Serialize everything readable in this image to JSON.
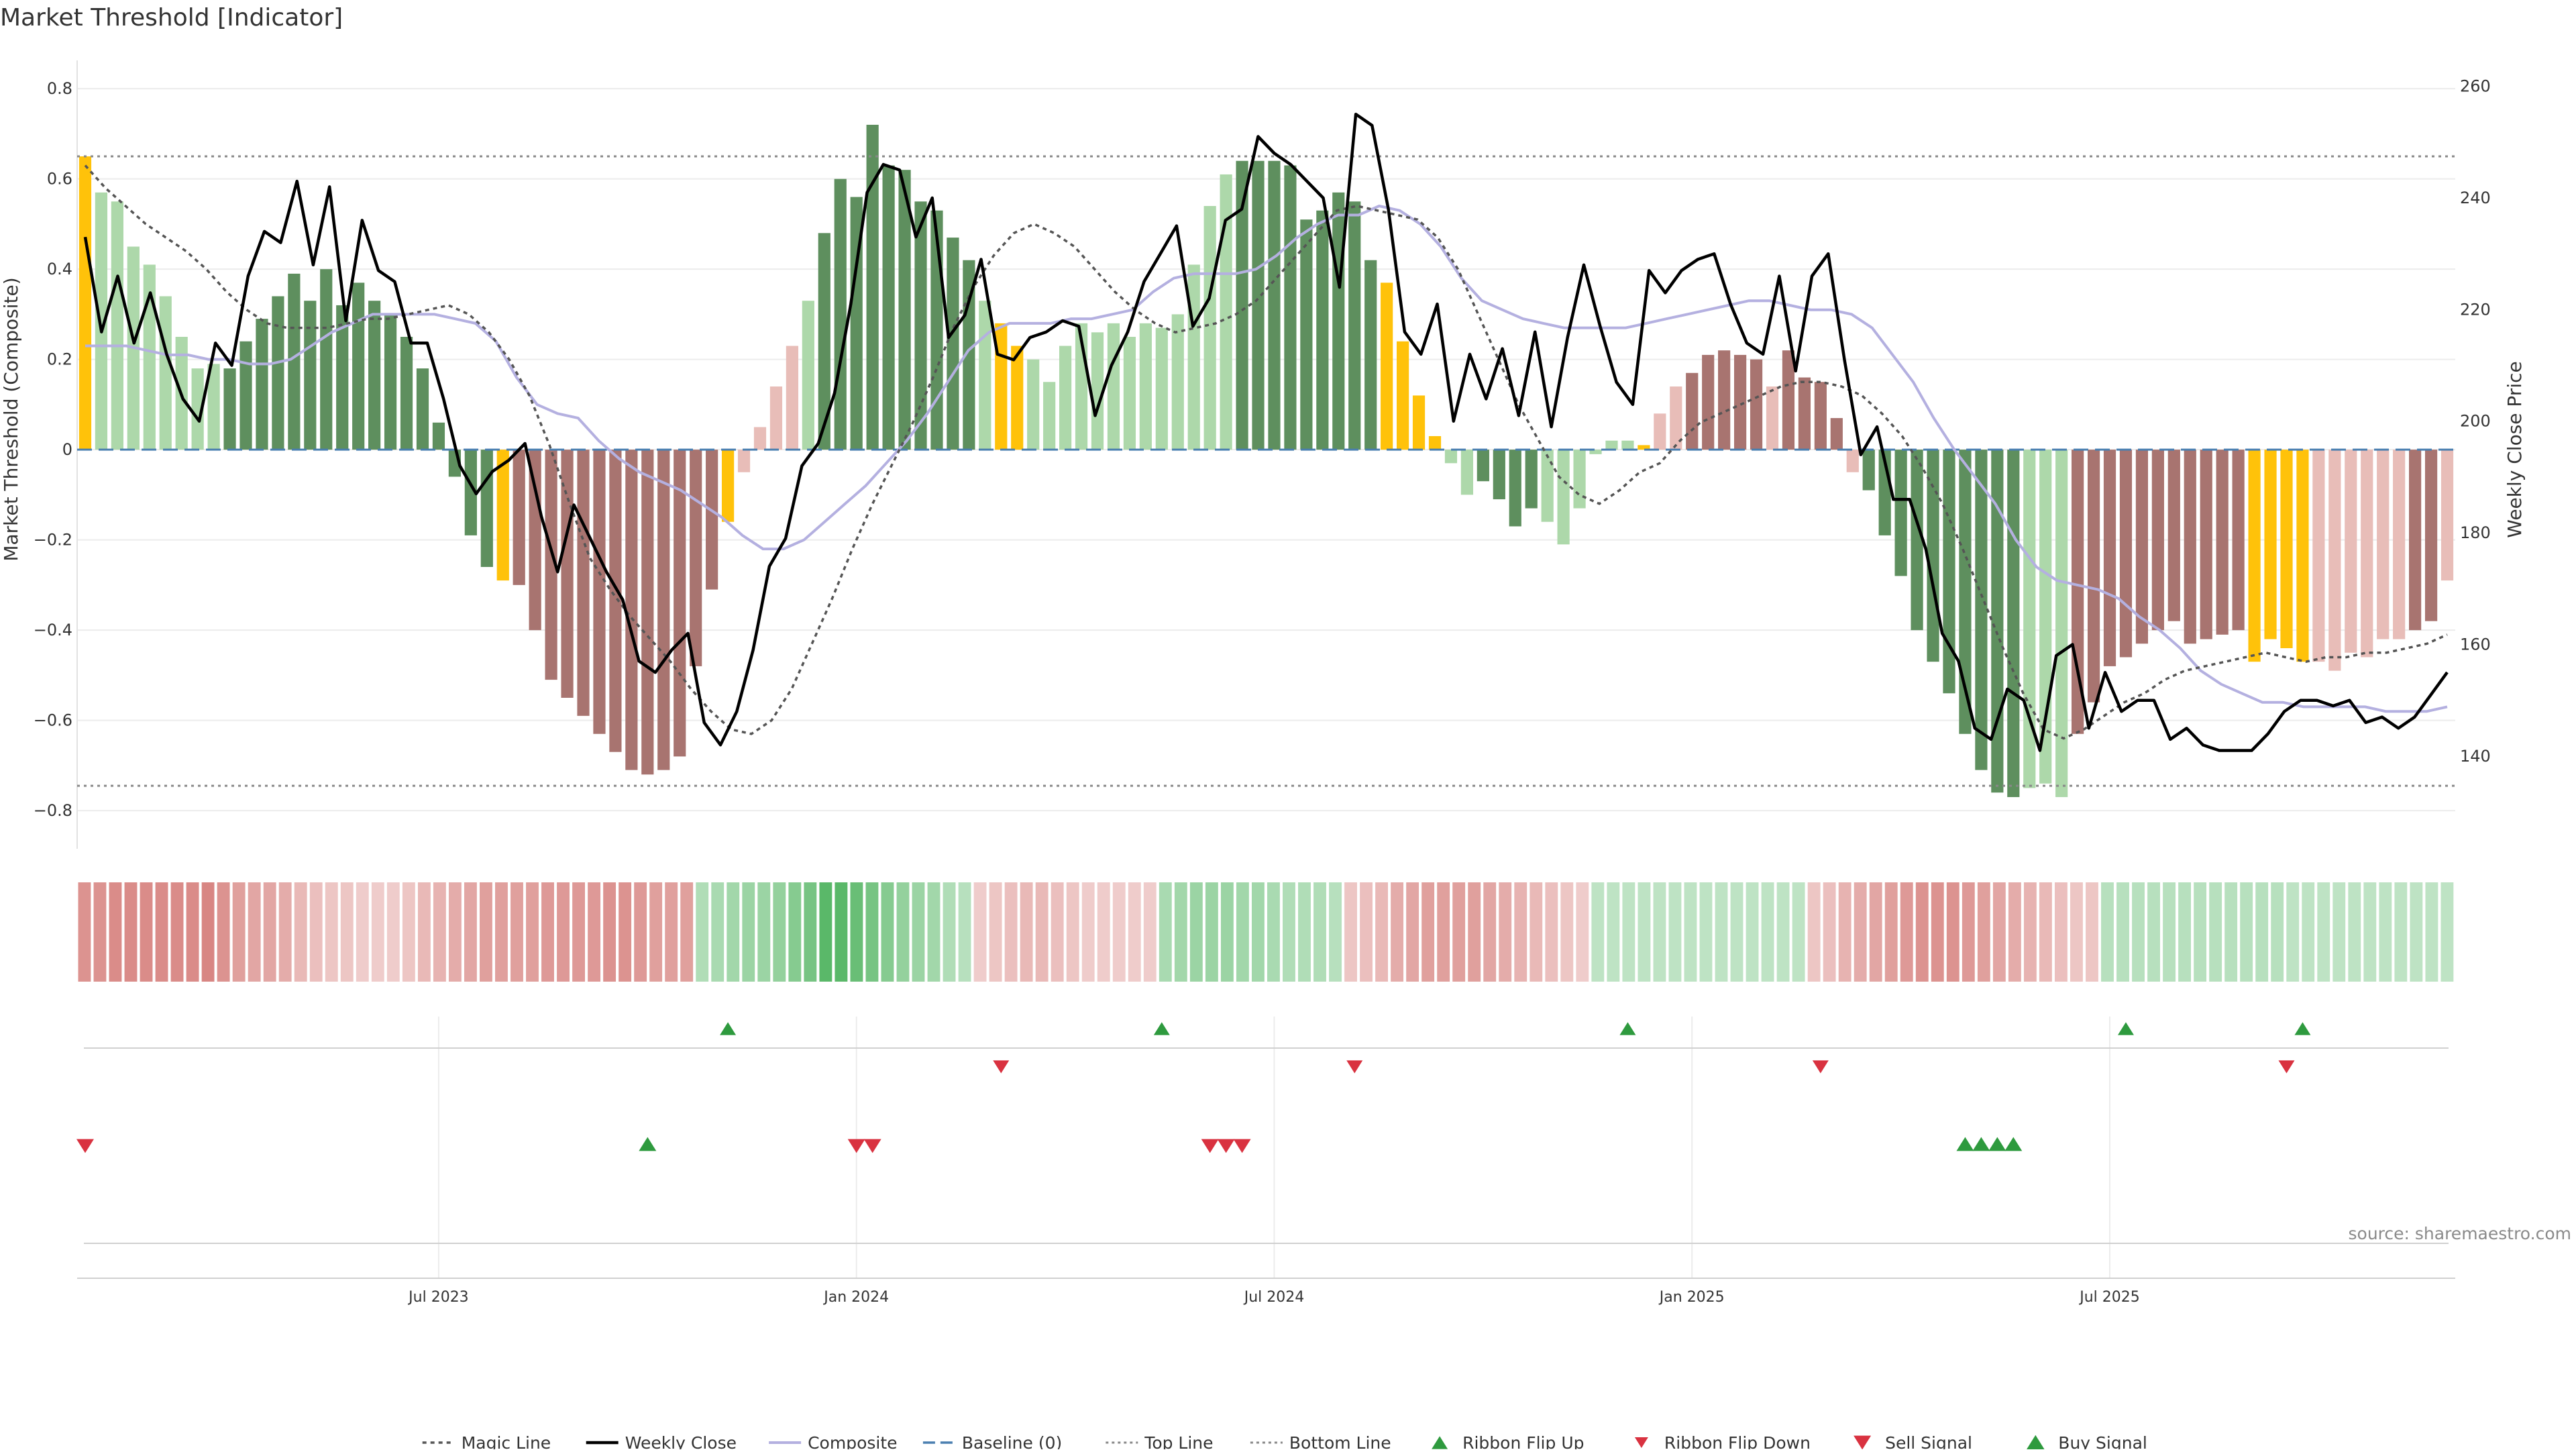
{
  "title": "Market Threshold [Indicator]",
  "source": "source: sharemaestro.com",
  "colors": {
    "pos_strong": "#5e8f5e",
    "pos_weak": "#add8aa",
    "neg_strong": "#a87470",
    "neg_weak": "#e8bdb8",
    "extreme": "#ffc20a",
    "close": "#000000",
    "composite": "#b4b0e0",
    "magic": "#555555",
    "baseline": "#4a7fb0",
    "threshold": "#888888",
    "up_marker": "#2e9a3e",
    "down_marker": "#d93240"
  },
  "chart_data": {
    "type": "bar",
    "title": "Market Threshold [Indicator]",
    "xlabel": "",
    "ylabel": "Market Threshold (Composite)",
    "y2label": "Weekly Close Price",
    "ylim": [
      -0.84,
      0.83
    ],
    "y2lim": [
      127,
      262
    ],
    "yticks": [
      "0.8",
      "0.6",
      "0.4",
      "0.2",
      "0",
      "−0.2",
      "−0.4",
      "−0.6",
      "−0.8"
    ],
    "y2ticks": [
      "260",
      "240",
      "220",
      "200",
      "180",
      "160",
      "140"
    ],
    "xticks": [
      {
        "label": "Jul 2023",
        "week": 22
      },
      {
        "label": "Jan 2024",
        "week": 48
      },
      {
        "label": "Jul 2024",
        "week": 74
      },
      {
        "label": "Jan 2025",
        "week": 100
      },
      {
        "label": "Jul 2025",
        "week": 126
      }
    ],
    "top_line": 0.65,
    "bottom_line": -0.745,
    "baseline": 0,
    "bar_codes": "XAAAAAAAASWSSSSSWSSSSSWWWWXNNNNNNNNNNNNNYZZZZAWWSSSSSSSSAXXAAAAAAAAAAAAASSSSSSSSSXXXXAASSSSAAAAAAXZZNNNNNZNNNNZSSSSSSSSSSAAANNNNNNNNNNNYYYYZZZZZZNNZZZZNZZNZZZ",
    "composite_bars": [
      0.65,
      0.57,
      0.55,
      0.45,
      0.41,
      0.34,
      0.25,
      0.18,
      0.19,
      0.18,
      0.24,
      0.29,
      0.34,
      0.39,
      0.33,
      0.4,
      0.32,
      0.37,
      0.33,
      0.3,
      0.25,
      0.18,
      0.06,
      -0.06,
      -0.19,
      -0.26,
      -0.29,
      -0.3,
      -0.4,
      -0.51,
      -0.55,
      -0.59,
      -0.63,
      -0.67,
      -0.71,
      -0.72,
      -0.71,
      -0.68,
      -0.48,
      -0.31,
      -0.16,
      -0.05,
      0.05,
      0.14,
      0.23,
      0.33,
      0.48,
      0.6,
      0.56,
      0.72,
      0.63,
      0.62,
      0.55,
      0.53,
      0.47,
      0.42,
      0.33,
      0.28,
      0.23,
      0.2,
      0.15,
      0.23,
      0.28,
      0.26,
      0.28,
      0.25,
      0.28,
      0.27,
      0.3,
      0.41,
      0.54,
      0.61,
      0.64,
      0.64,
      0.64,
      0.63,
      0.51,
      0.53,
      0.57,
      0.55,
      0.42,
      0.37,
      0.24,
      0.12,
      0.03,
      -0.03,
      -0.1,
      -0.07,
      -0.11,
      -0.17,
      -0.13,
      -0.16,
      -0.21,
      -0.13,
      -0.01,
      0.02,
      0.02,
      0.01,
      0.08,
      0.14,
      0.17,
      0.21,
      0.22,
      0.21,
      0.2,
      0.14,
      0.22,
      0.16,
      0.15,
      0.07,
      -0.05,
      -0.09,
      -0.19,
      -0.28,
      -0.4,
      -0.47,
      -0.54,
      -0.63,
      -0.71,
      -0.76,
      -0.77,
      -0.75,
      -0.74,
      -0.77,
      -0.63,
      -0.56,
      -0.48,
      -0.46,
      -0.43,
      -0.4,
      -0.38,
      -0.43,
      -0.42,
      -0.41,
      -0.4,
      -0.47,
      -0.42,
      -0.44,
      -0.47,
      -0.47,
      -0.49,
      -0.45,
      -0.46,
      -0.42,
      -0.42,
      -0.4,
      -0.38,
      -0.29
    ],
    "weekly_close": [
      233,
      216,
      226,
      214,
      223,
      212,
      204,
      200,
      214,
      210,
      226,
      234,
      232,
      243,
      228,
      242,
      218,
      236,
      227,
      225,
      214,
      214,
      204,
      192,
      187,
      191,
      193,
      196,
      183,
      173,
      185,
      179,
      173,
      168,
      157,
      155,
      159,
      162,
      146,
      142,
      148,
      159,
      174,
      179,
      192,
      196,
      205,
      221,
      241,
      246,
      245,
      233,
      240,
      215,
      219,
      229,
      212,
      211,
      215,
      216,
      218,
      217,
      201,
      210,
      216,
      225,
      230,
      235,
      217,
      222,
      236,
      238,
      251,
      248,
      246,
      243,
      240,
      224,
      255,
      253,
      238,
      216,
      212,
      221,
      200,
      212,
      204,
      213,
      201,
      216,
      199,
      215,
      228,
      217,
      207,
      203,
      227,
      223,
      227,
      229,
      230,
      221,
      214,
      212,
      226,
      209,
      226,
      230,
      211,
      194,
      199,
      186,
      186,
      177,
      162,
      157,
      145,
      143,
      152,
      150,
      141,
      158,
      160,
      145,
      155,
      148,
      150,
      150,
      143,
      145,
      142,
      141,
      141,
      141,
      144,
      148,
      150,
      150,
      149,
      150,
      146,
      147,
      145,
      147,
      151,
      155
    ],
    "magic_line": [
      0.63,
      0.58,
      0.54,
      0.5,
      0.47,
      0.44,
      0.4,
      0.35,
      0.31,
      0.28,
      0.27,
      0.27,
      0.27,
      0.28,
      0.29,
      0.29,
      0.3,
      0.31,
      0.32,
      0.3,
      0.26,
      0.2,
      0.12,
      0.01,
      -0.12,
      -0.24,
      -0.31,
      -0.37,
      -0.42,
      -0.47,
      -0.53,
      -0.58,
      -0.62,
      -0.63,
      -0.6,
      -0.53,
      -0.43,
      -0.33,
      -0.22,
      -0.12,
      -0.03,
      0.06,
      0.16,
      0.27,
      0.36,
      0.43,
      0.48,
      0.5,
      0.48,
      0.45,
      0.4,
      0.35,
      0.31,
      0.28,
      0.26,
      0.27,
      0.28,
      0.3,
      0.33,
      0.38,
      0.43,
      0.48,
      0.53,
      0.54,
      0.53,
      0.52,
      0.51,
      0.47,
      0.4,
      0.3,
      0.2,
      0.1,
      0.02,
      -0.06,
      -0.1,
      -0.12,
      -0.09,
      -0.05,
      -0.03,
      0.02,
      0.06,
      0.08,
      0.1,
      0.12,
      0.14,
      0.15,
      0.15,
      0.14,
      0.12,
      0.08,
      0.03,
      -0.04,
      -0.12,
      -0.22,
      -0.33,
      -0.44,
      -0.54,
      -0.62,
      -0.64,
      -0.62,
      -0.59,
      -0.56,
      -0.54,
      -0.51,
      -0.49,
      -0.48,
      -0.47,
      -0.46,
      -0.45,
      -0.46,
      -0.47,
      -0.46,
      -0.46,
      -0.45,
      -0.45,
      -0.44,
      -0.43,
      -0.41
    ],
    "composite_line": [
      0.23,
      0.23,
      0.23,
      0.22,
      0.21,
      0.21,
      0.2,
      0.2,
      0.19,
      0.19,
      0.2,
      0.23,
      0.26,
      0.28,
      0.3,
      0.3,
      0.3,
      0.3,
      0.29,
      0.28,
      0.24,
      0.16,
      0.1,
      0.08,
      0.07,
      0.02,
      -0.02,
      -0.05,
      -0.07,
      -0.09,
      -0.12,
      -0.15,
      -0.19,
      -0.22,
      -0.22,
      -0.2,
      -0.16,
      -0.12,
      -0.08,
      -0.03,
      0.02,
      0.08,
      0.15,
      0.22,
      0.26,
      0.28,
      0.28,
      0.28,
      0.29,
      0.29,
      0.3,
      0.31,
      0.35,
      0.38,
      0.39,
      0.39,
      0.39,
      0.4,
      0.43,
      0.47,
      0.5,
      0.52,
      0.52,
      0.54,
      0.53,
      0.5,
      0.45,
      0.38,
      0.33,
      0.31,
      0.29,
      0.28,
      0.27,
      0.27,
      0.27,
      0.27,
      0.28,
      0.29,
      0.3,
      0.31,
      0.32,
      0.33,
      0.33,
      0.32,
      0.31,
      0.31,
      0.3,
      0.27,
      0.21,
      0.15,
      0.07,
      0.0,
      -0.06,
      -0.12,
      -0.2,
      -0.26,
      -0.29,
      -0.3,
      -0.31,
      -0.33,
      -0.37,
      -0.4,
      -0.44,
      -0.49,
      -0.52,
      -0.54,
      -0.56,
      -0.56,
      -0.57,
      -0.57,
      -0.57,
      -0.57,
      -0.58,
      -0.58,
      -0.58,
      -0.57
    ],
    "ribbon": [
      -0.6,
      -0.6,
      -0.65,
      -0.65,
      -0.65,
      -0.65,
      -0.65,
      -0.65,
      -0.7,
      -0.6,
      -0.5,
      -0.45,
      -0.45,
      -0.4,
      -0.3,
      -0.25,
      -0.2,
      -0.2,
      -0.15,
      -0.15,
      -0.15,
      -0.2,
      -0.3,
      -0.35,
      -0.4,
      -0.45,
      -0.5,
      -0.5,
      -0.5,
      -0.5,
      -0.55,
      -0.55,
      -0.55,
      -0.55,
      -0.6,
      -0.6,
      -0.55,
      -0.5,
      -0.5,
      -0.5,
      0.3,
      0.35,
      0.4,
      0.45,
      0.45,
      0.5,
      0.6,
      0.7,
      0.9,
      0.9,
      0.8,
      0.7,
      0.6,
      0.5,
      0.45,
      0.4,
      0.3,
      0.25,
      -0.15,
      -0.2,
      -0.25,
      -0.3,
      -0.3,
      -0.25,
      -0.2,
      -0.15,
      -0.15,
      -0.15,
      -0.15,
      -0.15,
      0.35,
      0.4,
      0.45,
      0.45,
      0.45,
      0.4,
      0.4,
      0.35,
      0.3,
      0.3,
      0.3,
      0.25,
      -0.2,
      -0.25,
      -0.3,
      -0.4,
      -0.45,
      -0.5,
      -0.5,
      -0.5,
      -0.5,
      -0.45,
      -0.4,
      -0.35,
      -0.3,
      -0.25,
      -0.2,
      -0.15,
      0.2,
      0.2,
      0.2,
      0.2,
      0.2,
      0.2,
      0.2,
      0.2,
      0.2,
      0.2,
      0.2,
      0.2,
      0.2,
      0.2,
      -0.2,
      -0.25,
      -0.35,
      -0.4,
      -0.45,
      -0.5,
      -0.55,
      -0.6,
      -0.6,
      -0.6,
      -0.55,
      -0.5,
      -0.45,
      -0.4,
      -0.35,
      -0.3,
      -0.25,
      -0.2,
      -0.2,
      0.25,
      0.25,
      0.25,
      0.25,
      0.25,
      0.25,
      0.25,
      0.25,
      0.25,
      0.25,
      0.25,
      0.25,
      0.2,
      0.2,
      0.2,
      0.2,
      0.2,
      0.2,
      0.2,
      0.2,
      0.2,
      0.2,
      0.2
    ],
    "ribbon_flip_up": [
      40,
      67,
      96,
      127,
      138
    ],
    "ribbon_flip_down": [
      57,
      79,
      108,
      137
    ],
    "sell_signals": [
      0,
      48,
      49,
      70,
      71,
      72
    ],
    "buy_signals": [
      35,
      117,
      118,
      119,
      120
    ],
    "legend": [
      {
        "key": "magic",
        "label": "Magic Line"
      },
      {
        "key": "close",
        "label": "Weekly Close"
      },
      {
        "key": "composite",
        "label": "Composite"
      },
      {
        "key": "baseline",
        "label": "Baseline (0)"
      },
      {
        "key": "top",
        "label": "Top Line"
      },
      {
        "key": "bottom",
        "label": "Bottom Line"
      },
      {
        "key": "flipup",
        "label": "Ribbon Flip Up"
      },
      {
        "key": "flipdown",
        "label": "Ribbon Flip Down"
      },
      {
        "key": "sell",
        "label": "Sell Signal"
      },
      {
        "key": "buy",
        "label": "Buy Signal"
      }
    ],
    "grid": true,
    "legend_position": "bottom-center"
  }
}
